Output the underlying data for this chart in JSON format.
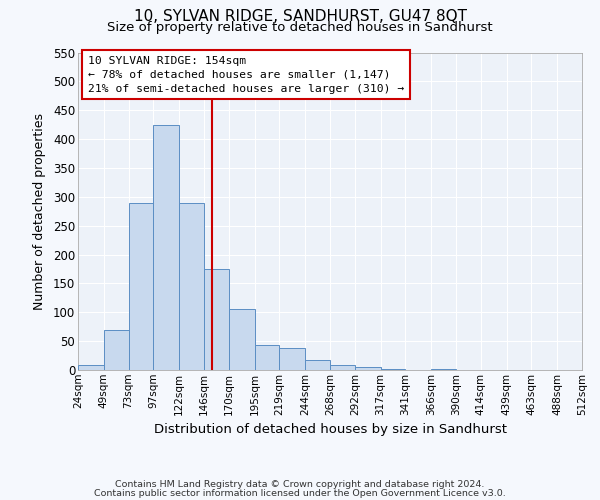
{
  "title": "10, SYLVAN RIDGE, SANDHURST, GU47 8QT",
  "subtitle": "Size of property relative to detached houses in Sandhurst",
  "xlabel": "Distribution of detached houses by size in Sandhurst",
  "ylabel": "Number of detached properties",
  "bar_color": "#c8d9ee",
  "bar_edge_color": "#5b8ec4",
  "background_color": "#edf2f9",
  "grid_color": "#ffffff",
  "vline_value": 154,
  "vline_color": "#cc0000",
  "annotation_text_line1": "10 SYLVAN RIDGE: 154sqm",
  "annotation_text_line2": "← 78% of detached houses are smaller (1,147)",
  "annotation_text_line3": "21% of semi-detached houses are larger (310) →",
  "annotation_box_color": "#cc0000",
  "footer_line1": "Contains HM Land Registry data © Crown copyright and database right 2024.",
  "footer_line2": "Contains public sector information licensed under the Open Government Licence v3.0.",
  "bin_edges": [
    24,
    49,
    73,
    97,
    122,
    146,
    170,
    195,
    219,
    244,
    268,
    292,
    317,
    341,
    366,
    390,
    414,
    439,
    463,
    488,
    512
  ],
  "bin_labels": [
    "24sqm",
    "49sqm",
    "73sqm",
    "97sqm",
    "122sqm",
    "146sqm",
    "170sqm",
    "195sqm",
    "219sqm",
    "244sqm",
    "268sqm",
    "292sqm",
    "317sqm",
    "341sqm",
    "366sqm",
    "390sqm",
    "414sqm",
    "439sqm",
    "463sqm",
    "488sqm",
    "512sqm"
  ],
  "counts": [
    8,
    70,
    290,
    425,
    290,
    175,
    105,
    43,
    38,
    18,
    8,
    5,
    1,
    0,
    1,
    0,
    0,
    0,
    0,
    0
  ],
  "ylim": [
    0,
    550
  ],
  "yticks": [
    0,
    50,
    100,
    150,
    200,
    250,
    300,
    350,
    400,
    450,
    500,
    550
  ]
}
